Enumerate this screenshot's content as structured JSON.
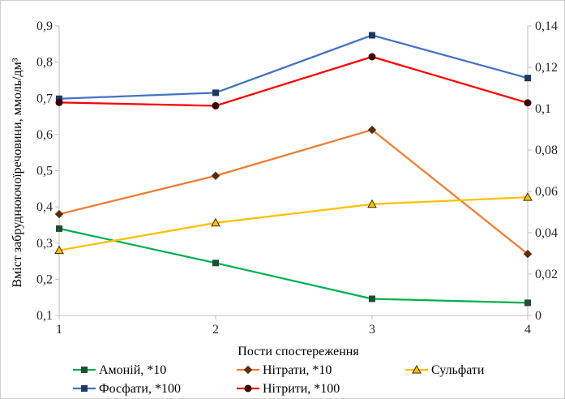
{
  "chart_data": {
    "type": "line",
    "title": "",
    "xlabel": "Пости спостереження",
    "ylabel": "Вміст забруднюючоїречовини, ммоль/дм³",
    "ylabel_right": "",
    "categories": [
      "1",
      "2",
      "3",
      "4"
    ],
    "ylim": [
      0.1,
      0.9
    ],
    "yticks": [
      "0,1",
      "0,2",
      "0,3",
      "0,4",
      "0,5",
      "0,6",
      "0,7",
      "0,8",
      "0,9"
    ],
    "y2lim": [
      0,
      0.14
    ],
    "y2ticks": [
      "0",
      "0,02",
      "0,04",
      "0,06",
      "0,08",
      "0,1",
      "0,12",
      "0,14"
    ],
    "grid": false,
    "legend_position": "bottom",
    "series": [
      {
        "name": "Амоній, *10",
        "axis": "left",
        "color": "#00b050",
        "marker": "square",
        "marker_color": "#1f4e2e",
        "values": [
          0.34,
          0.245,
          0.146,
          0.135
        ]
      },
      {
        "name": "Нітрати, *10",
        "axis": "left",
        "color": "#ed7d31",
        "marker": "diamond",
        "marker_color": "#5a2d0c",
        "values": [
          0.38,
          0.486,
          0.613,
          0.27
        ]
      },
      {
        "name": "Сульфати",
        "axis": "right",
        "color": "#ffc000",
        "marker": "triangle",
        "marker_color": "#3a2c00",
        "values": [
          0.0315,
          0.0448,
          0.0538,
          0.0572
        ]
      },
      {
        "name": "Фосфати, *100",
        "axis": "right",
        "color": "#4472c4",
        "marker": "square",
        "marker_color": "#1f3864",
        "values": [
          0.1048,
          0.1077,
          0.1355,
          0.1148
        ]
      },
      {
        "name": "Нітрити, *100",
        "axis": "right",
        "color": "#ff0000",
        "marker": "circle",
        "marker_color": "#3b0000",
        "values": [
          0.103,
          0.1014,
          0.1251,
          0.1028
        ]
      }
    ]
  }
}
